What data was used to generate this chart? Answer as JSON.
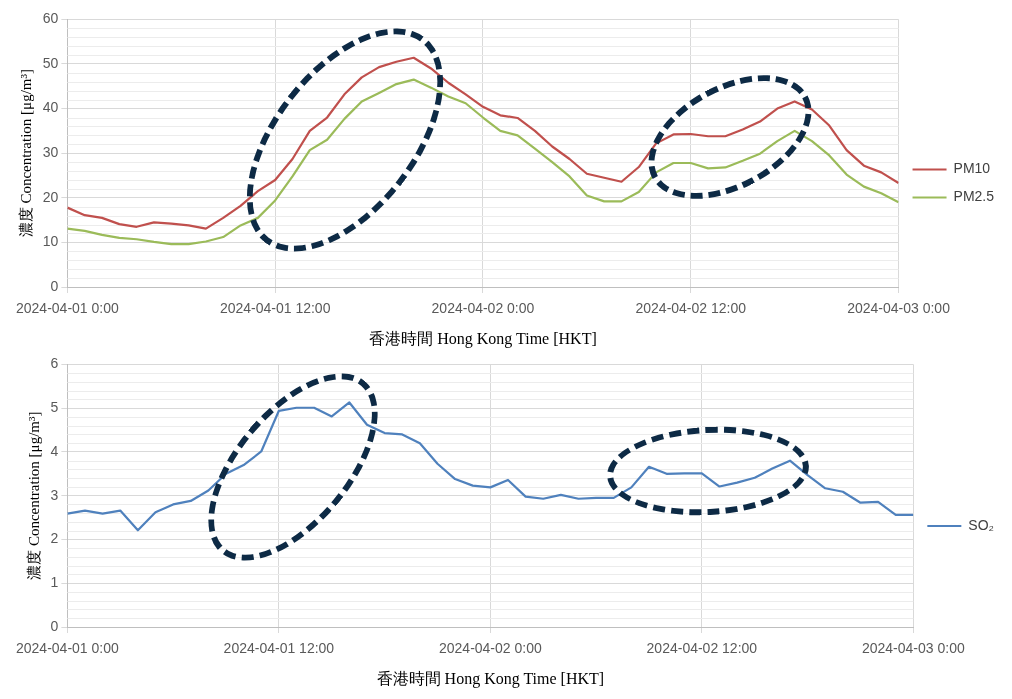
{
  "chart_data": [
    {
      "type": "line",
      "xlabel": "香港時間 Hong Kong Time [HKT]",
      "ylabel": "濃度 Concentration [μg/m³]",
      "x": [
        "2024-04-01T00:00",
        "2024-04-01T01:00",
        "2024-04-01T02:00",
        "2024-04-01T03:00",
        "2024-04-01T04:00",
        "2024-04-01T05:00",
        "2024-04-01T06:00",
        "2024-04-01T07:00",
        "2024-04-01T08:00",
        "2024-04-01T09:00",
        "2024-04-01T10:00",
        "2024-04-01T11:00",
        "2024-04-01T12:00",
        "2024-04-01T13:00",
        "2024-04-01T14:00",
        "2024-04-01T15:00",
        "2024-04-01T16:00",
        "2024-04-01T17:00",
        "2024-04-01T18:00",
        "2024-04-01T19:00",
        "2024-04-01T20:00",
        "2024-04-01T21:00",
        "2024-04-01T22:00",
        "2024-04-01T23:00",
        "2024-04-02T00:00",
        "2024-04-02T01:00",
        "2024-04-02T02:00",
        "2024-04-02T03:00",
        "2024-04-02T04:00",
        "2024-04-02T05:00",
        "2024-04-02T06:00",
        "2024-04-02T07:00",
        "2024-04-02T08:00",
        "2024-04-02T09:00",
        "2024-04-02T10:00",
        "2024-04-02T11:00",
        "2024-04-02T12:00",
        "2024-04-02T13:00",
        "2024-04-02T14:00",
        "2024-04-02T15:00",
        "2024-04-02T16:00",
        "2024-04-02T17:00",
        "2024-04-02T18:00",
        "2024-04-02T19:00",
        "2024-04-02T20:00",
        "2024-04-02T21:00",
        "2024-04-02T22:00",
        "2024-04-02T23:00",
        "2024-04-03T00:00"
      ],
      "series": [
        {
          "name": "PM10",
          "color": "#c0504d",
          "values": [
            17.8,
            16.1,
            15.5,
            14.1,
            13.5,
            14.5,
            14.2,
            13.8,
            13.1,
            15.5,
            18.2,
            21.5,
            24,
            28.7,
            35,
            38,
            43.2,
            47,
            49.3,
            50.5,
            51.4,
            49,
            45.8,
            43.2,
            40.4,
            38.5,
            37.9,
            35,
            31.5,
            28.7,
            25.4,
            24.5,
            23.6,
            26.9,
            32.2,
            34.2,
            34.3,
            33.8,
            33.8,
            35.3,
            37.1,
            40,
            41.6,
            39.8,
            36.2,
            30.7,
            27.2,
            25.7,
            23.3
          ]
        },
        {
          "name": "PM2.5",
          "color": "#9bbb59",
          "values": [
            13.1,
            12.6,
            11.7,
            11,
            10.7,
            10.1,
            9.6,
            9.6,
            10.2,
            11.2,
            13.8,
            15.5,
            19.4,
            24.8,
            30.7,
            33,
            37.7,
            41.6,
            43.5,
            45.5,
            46.5,
            44.7,
            42.7,
            41.2,
            38,
            35,
            34,
            31,
            28,
            24.8,
            20.5,
            19.2,
            19.2,
            21.3,
            25.7,
            27.8,
            27.8,
            26.6,
            26.8,
            28.3,
            29.9,
            32.7,
            35,
            32.7,
            29.5,
            25.2,
            22.5,
            21,
            19
          ]
        }
      ],
      "xlim": [
        "2024-04-01T00:00",
        "2024-04-03T00:00"
      ],
      "xticks": [
        {
          "value": "2024-04-01T00:00",
          "label": "2024-04-01 0:00"
        },
        {
          "value": "2024-04-01T12:00",
          "label": "2024-04-01 12:00"
        },
        {
          "value": "2024-04-02T00:00",
          "label": "2024-04-02 0:00"
        },
        {
          "value": "2024-04-02T12:00",
          "label": "2024-04-02 12:00"
        },
        {
          "value": "2024-04-03T00:00",
          "label": "2024-04-03 0:00"
        }
      ],
      "ylim": [
        0,
        60
      ],
      "yticks": [
        0,
        10,
        20,
        30,
        40,
        50,
        60
      ],
      "grid": true,
      "legend": "right",
      "marker": "none",
      "line_style": "solid"
    },
    {
      "type": "line",
      "xlabel": "香港時間 Hong Kong Time [HKT]",
      "ylabel": "濃度 Concentration [μg/m³]",
      "x": [
        "2024-04-01T00:00",
        "2024-04-01T01:00",
        "2024-04-01T02:00",
        "2024-04-01T03:00",
        "2024-04-01T04:00",
        "2024-04-01T05:00",
        "2024-04-01T06:00",
        "2024-04-01T07:00",
        "2024-04-01T08:00",
        "2024-04-01T09:00",
        "2024-04-01T10:00",
        "2024-04-01T11:00",
        "2024-04-01T12:00",
        "2024-04-01T13:00",
        "2024-04-01T14:00",
        "2024-04-01T15:00",
        "2024-04-01T16:00",
        "2024-04-01T17:00",
        "2024-04-01T18:00",
        "2024-04-01T19:00",
        "2024-04-01T20:00",
        "2024-04-01T21:00",
        "2024-04-01T22:00",
        "2024-04-01T23:00",
        "2024-04-02T00:00",
        "2024-04-02T01:00",
        "2024-04-02T02:00",
        "2024-04-02T03:00",
        "2024-04-02T04:00",
        "2024-04-02T05:00",
        "2024-04-02T06:00",
        "2024-04-02T07:00",
        "2024-04-02T08:00",
        "2024-04-02T09:00",
        "2024-04-02T10:00",
        "2024-04-02T11:00",
        "2024-04-02T12:00",
        "2024-04-02T13:00",
        "2024-04-02T14:00",
        "2024-04-02T15:00",
        "2024-04-02T16:00",
        "2024-04-02T17:00",
        "2024-04-02T18:00",
        "2024-04-02T19:00",
        "2024-04-02T20:00",
        "2024-04-02T21:00",
        "2024-04-02T22:00",
        "2024-04-02T23:00",
        "2024-04-03T00:00"
      ],
      "series": [
        {
          "name": "SO₂",
          "color": "#4f81bd",
          "values": [
            2.59,
            2.66,
            2.59,
            2.66,
            2.21,
            2.62,
            2.8,
            2.88,
            3.12,
            3.5,
            3.7,
            4.01,
            4.94,
            5.01,
            5.01,
            4.81,
            5.13,
            4.62,
            4.43,
            4.4,
            4.2,
            3.73,
            3.38,
            3.23,
            3.19,
            3.36,
            2.98,
            2.93,
            3.02,
            2.93,
            2.95,
            2.95,
            3.19,
            3.66,
            3.5,
            3.51,
            3.51,
            3.21,
            3.3,
            3.41,
            3.62,
            3.8,
            3.47,
            3.17,
            3.09,
            2.84,
            2.86,
            2.56,
            2.56
          ]
        }
      ],
      "xlim": [
        "2024-04-01T00:00",
        "2024-04-03T00:00"
      ],
      "xticks": [
        {
          "value": "2024-04-01T00:00",
          "label": "2024-04-01 0:00"
        },
        {
          "value": "2024-04-01T12:00",
          "label": "2024-04-01 12:00"
        },
        {
          "value": "2024-04-02T00:00",
          "label": "2024-04-02 0:00"
        },
        {
          "value": "2024-04-02T12:00",
          "label": "2024-04-02 12:00"
        },
        {
          "value": "2024-04-03T00:00",
          "label": "2024-04-03 0:00"
        }
      ],
      "ylim": [
        0,
        6
      ],
      "yticks": [
        0,
        1,
        2,
        3,
        4,
        5,
        6
      ],
      "grid": true,
      "legend": "right",
      "marker": "none",
      "line_style": "solid"
    }
  ]
}
